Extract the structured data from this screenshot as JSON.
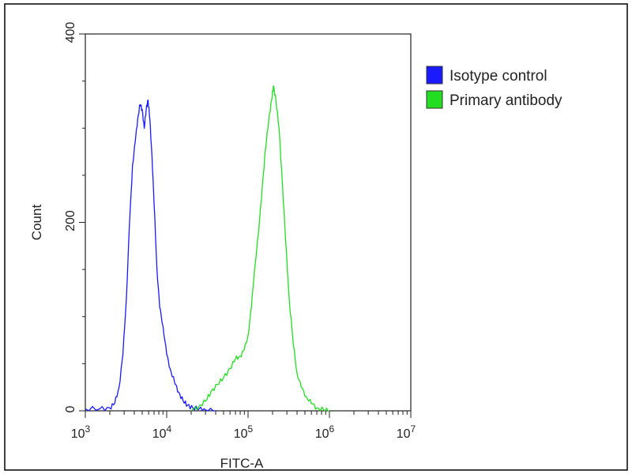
{
  "chart_data": {
    "type": "line",
    "xlabel": "FITC-A",
    "ylabel": "Count",
    "x_scale": "log",
    "xlim": [
      1000,
      10000000
    ],
    "ylim": [
      0,
      400
    ],
    "grid": false,
    "legend_position": "top-right",
    "x_ticks": [
      {
        "value": 1000,
        "base": "10",
        "exp": "3"
      },
      {
        "value": 10000,
        "base": "10",
        "exp": "4"
      },
      {
        "value": 100000,
        "base": "10",
        "exp": "5"
      },
      {
        "value": 1000000,
        "base": "10",
        "exp": "6"
      },
      {
        "value": 10000000,
        "base": "10",
        "exp": "7"
      }
    ],
    "y_ticks": [
      {
        "value": 0,
        "label": "0"
      },
      {
        "value": 200,
        "label": "200"
      },
      {
        "value": 400,
        "label": "400"
      }
    ],
    "series": [
      {
        "name": "Isotype control",
        "color": "#1a1aff",
        "points": [
          [
            1000,
            2
          ],
          [
            1500,
            2
          ],
          [
            2000,
            3
          ],
          [
            2300,
            8
          ],
          [
            2600,
            25
          ],
          [
            2900,
            60
          ],
          [
            3200,
            120
          ],
          [
            3500,
            200
          ],
          [
            3800,
            260
          ],
          [
            4100,
            285
          ],
          [
            4400,
            310
          ],
          [
            4700,
            325
          ],
          [
            5000,
            320
          ],
          [
            5300,
            300
          ],
          [
            5600,
            320
          ],
          [
            5900,
            330
          ],
          [
            6200,
            310
          ],
          [
            6600,
            270
          ],
          [
            7000,
            220
          ],
          [
            7600,
            150
          ],
          [
            8200,
            110
          ],
          [
            9000,
            90
          ],
          [
            10000,
            60
          ],
          [
            11000,
            45
          ],
          [
            12500,
            30
          ],
          [
            14000,
            20
          ],
          [
            16000,
            10
          ],
          [
            18000,
            6
          ],
          [
            21000,
            3
          ],
          [
            25000,
            2
          ],
          [
            30000,
            1
          ],
          [
            40000,
            0
          ]
        ]
      },
      {
        "name": "Primary antibody",
        "color": "#22dd22",
        "points": [
          [
            20000,
            0
          ],
          [
            25000,
            5
          ],
          [
            30000,
            10
          ],
          [
            35000,
            20
          ],
          [
            42000,
            28
          ],
          [
            50000,
            35
          ],
          [
            60000,
            45
          ],
          [
            70000,
            55
          ],
          [
            80000,
            58
          ],
          [
            90000,
            65
          ],
          [
            100000,
            80
          ],
          [
            110000,
            110
          ],
          [
            120000,
            150
          ],
          [
            135000,
            190
          ],
          [
            150000,
            240
          ],
          [
            165000,
            280
          ],
          [
            180000,
            310
          ],
          [
            195000,
            330
          ],
          [
            205000,
            345
          ],
          [
            220000,
            330
          ],
          [
            240000,
            300
          ],
          [
            265000,
            240
          ],
          [
            290000,
            180
          ],
          [
            320000,
            120
          ],
          [
            360000,
            70
          ],
          [
            400000,
            40
          ],
          [
            450000,
            25
          ],
          [
            520000,
            15
          ],
          [
            600000,
            8
          ],
          [
            700000,
            3
          ],
          [
            850000,
            1
          ],
          [
            1000000,
            0
          ]
        ]
      }
    ]
  }
}
